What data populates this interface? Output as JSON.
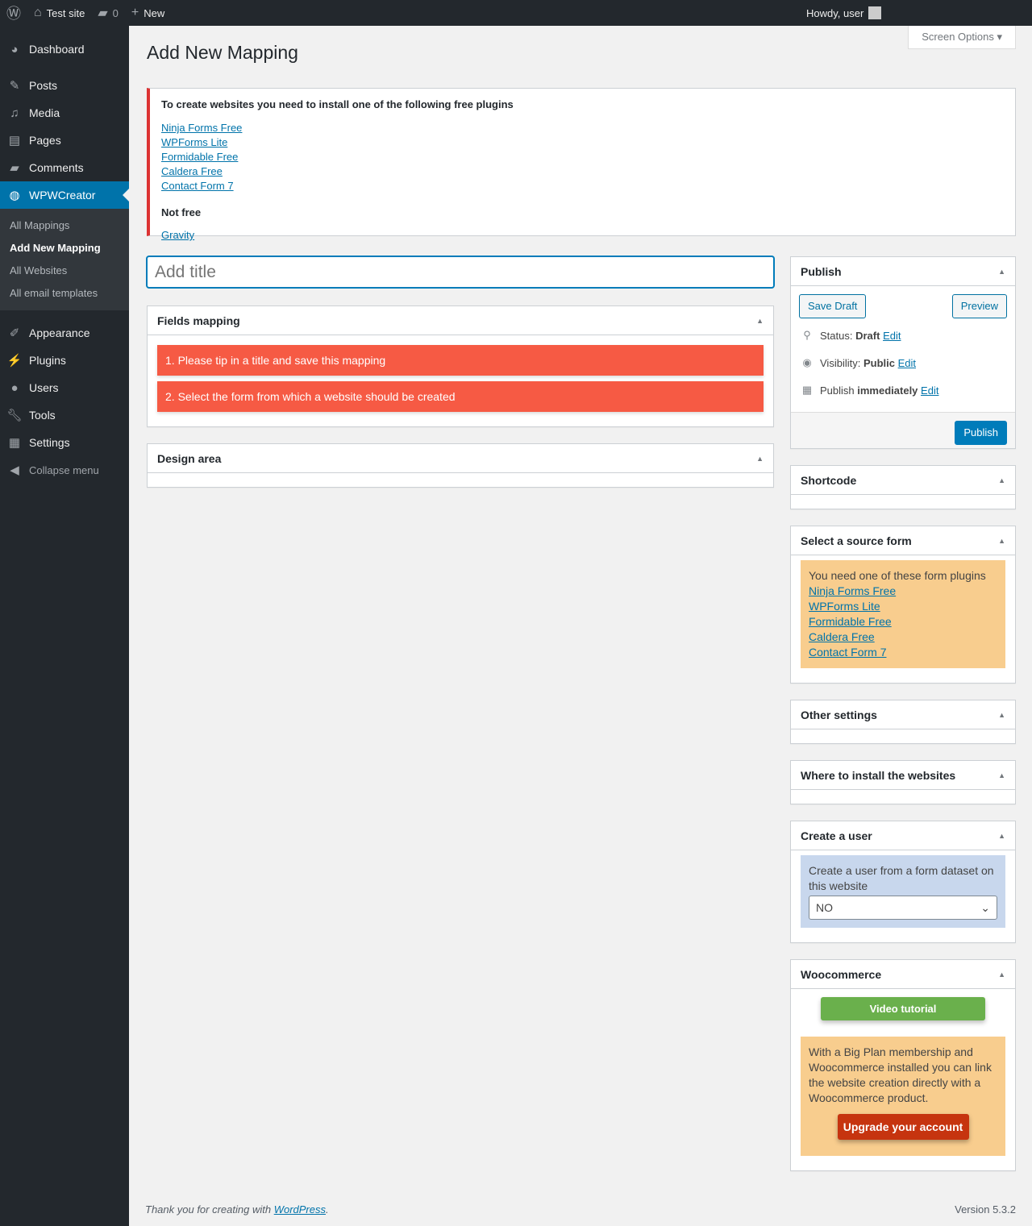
{
  "adminbar": {
    "site": "Test site",
    "comments": "0",
    "new": "New",
    "howdy": "Howdy, user"
  },
  "sidebar": {
    "items": [
      {
        "label": "Dashboard",
        "icon": "dashboard-icon"
      },
      {
        "label": "Posts"
      },
      {
        "label": "Media"
      },
      {
        "label": "Pages"
      },
      {
        "label": "Comments"
      },
      {
        "label": "WPWCreator"
      },
      {
        "label": "Appearance"
      },
      {
        "label": "Plugins"
      },
      {
        "label": "Users"
      },
      {
        "label": "Tools"
      },
      {
        "label": "Settings"
      },
      {
        "label": "Collapse menu"
      }
    ],
    "submenu": [
      "All Mappings",
      "Add New Mapping",
      "All Websites",
      "All email templates"
    ]
  },
  "page": {
    "title": "Add New Mapping",
    "screen_options": "Screen Options"
  },
  "notice": {
    "heading": "To create websites you need to install one of the following free plugins",
    "free": [
      "Ninja Forms Free",
      "WPForms Lite",
      "Formidable Free",
      "Caldera Free",
      "Contact Form 7"
    ],
    "notfree_heading": "Not free",
    "notfree": [
      "Gravity"
    ]
  },
  "title_placeholder": "Add title",
  "fields": {
    "title": "Fields mapping",
    "steps": [
      "1. Please tip in a title and save this mapping",
      "2. Select the form from which a website should be created"
    ]
  },
  "design": {
    "title": "Design area"
  },
  "publish": {
    "title": "Publish",
    "save_draft": "Save Draft",
    "preview": "Preview",
    "status_label": "Status:",
    "status": "Draft",
    "visibility_label": "Visibility:",
    "visibility": "Public",
    "publish_label": "Publish",
    "publish_when": "immediately",
    "edit": "Edit",
    "publish_btn": "Publish"
  },
  "shortcode": {
    "title": "Shortcode"
  },
  "source": {
    "title": "Select a source form",
    "text": "You need one of these form plugins",
    "links": [
      "Ninja Forms Free",
      "WPForms Lite",
      "Formidable Free",
      "Caldera Free",
      "Contact Form 7"
    ]
  },
  "other": {
    "title": "Other settings"
  },
  "where": {
    "title": "Where to install the websites"
  },
  "user": {
    "title": "Create a user",
    "text": "Create a user from a form dataset on this website",
    "value": "NO"
  },
  "woo": {
    "title": "Woocommerce",
    "video": "Video tutorial",
    "text": "With a Big Plan membership and Woocommerce installed you can link the website creation directly with a Woocommerce product.",
    "upgrade": "Upgrade your account"
  },
  "footer": {
    "thanks": "Thank you for creating with ",
    "link": "WordPress",
    "dot": ".",
    "version": "Version 5.3.2"
  }
}
